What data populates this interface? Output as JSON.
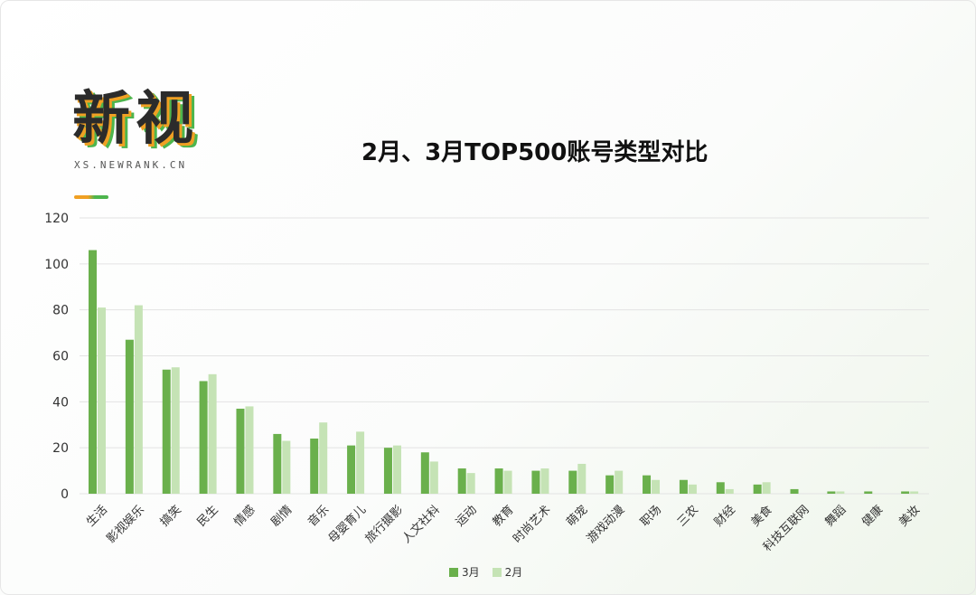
{
  "logo": {
    "main": "新视",
    "sub": "XS.NEWRANK.CN"
  },
  "colors": {
    "series_3": "#6ab04c",
    "series_2": "#c5e3b5",
    "grid": "#e3e3e3"
  },
  "chart_data": {
    "type": "bar",
    "title": "2月、3月TOP500账号类型对比",
    "xlabel": "",
    "ylabel": "",
    "ylim": [
      0,
      120
    ],
    "yticks": [
      0,
      20,
      40,
      60,
      80,
      100,
      120
    ],
    "grid": true,
    "legend_position": "bottom",
    "categories": [
      "生活",
      "影视娱乐",
      "搞笑",
      "民生",
      "情感",
      "剧情",
      "音乐",
      "母婴育儿",
      "旅行摄影",
      "人文社科",
      "运动",
      "教育",
      "时尚艺术",
      "萌宠",
      "游戏动漫",
      "职场",
      "三农",
      "财经",
      "美食",
      "科技互联网",
      "舞蹈",
      "健康",
      "美妆"
    ],
    "series": [
      {
        "name": "3月",
        "values": [
          106,
          67,
          54,
          49,
          37,
          26,
          24,
          21,
          20,
          18,
          11,
          11,
          10,
          10,
          8,
          8,
          6,
          5,
          4,
          2,
          1,
          1,
          1
        ]
      },
      {
        "name": "2月",
        "values": [
          81,
          82,
          55,
          52,
          38,
          23,
          31,
          27,
          21,
          14,
          9,
          10,
          11,
          13,
          10,
          6,
          4,
          2,
          5,
          0,
          1,
          0,
          1
        ]
      }
    ]
  }
}
